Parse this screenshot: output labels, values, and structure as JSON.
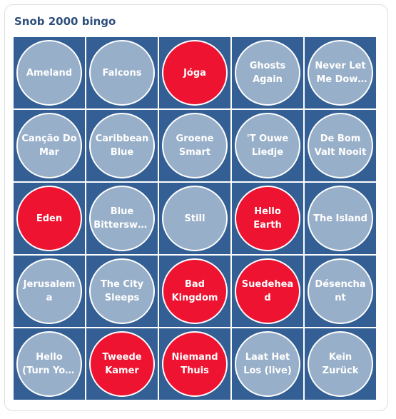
{
  "title": "Snob 2000 bingo",
  "colors": {
    "cell_background": "#335f95",
    "circle_unmarked": "#98afc9",
    "circle_marked": "#ee1330",
    "title": "#2d4f7c"
  },
  "cells": [
    {
      "label": "Ameland",
      "marked": false
    },
    {
      "label": "Falcons",
      "marked": false
    },
    {
      "label": "Jóga",
      "marked": true
    },
    {
      "label": "Ghosts Again",
      "marked": false
    },
    {
      "label": "Never Let Me Down Again",
      "marked": false
    },
    {
      "label": "Canção Do Mar",
      "marked": false
    },
    {
      "label": "Caribbean Blue",
      "marked": false
    },
    {
      "label": "Groene Smart",
      "marked": false
    },
    {
      "label": "'T Ouwe Liedje",
      "marked": false
    },
    {
      "label": "De Bom Valt Nooit",
      "marked": false
    },
    {
      "label": "Eden",
      "marked": true
    },
    {
      "label": "Blue Bittersweet",
      "marked": false
    },
    {
      "label": "Still",
      "marked": false
    },
    {
      "label": "Hello Earth",
      "marked": true
    },
    {
      "label": "The Island",
      "marked": false
    },
    {
      "label": "Jerusalema",
      "marked": false
    },
    {
      "label": "The City Sleeps",
      "marked": false
    },
    {
      "label": "Bad Kingdom",
      "marked": true
    },
    {
      "label": "Suedehead",
      "marked": true
    },
    {
      "label": "Désenchant",
      "marked": false
    },
    {
      "label": "Hello (Turn Your Radio On)",
      "marked": false
    },
    {
      "label": "Tweede Kamer",
      "marked": true
    },
    {
      "label": "Niemand Thuis",
      "marked": true
    },
    {
      "label": "Laat Het Los (live)",
      "marked": false
    },
    {
      "label": "Kein Zurück",
      "marked": false
    }
  ]
}
